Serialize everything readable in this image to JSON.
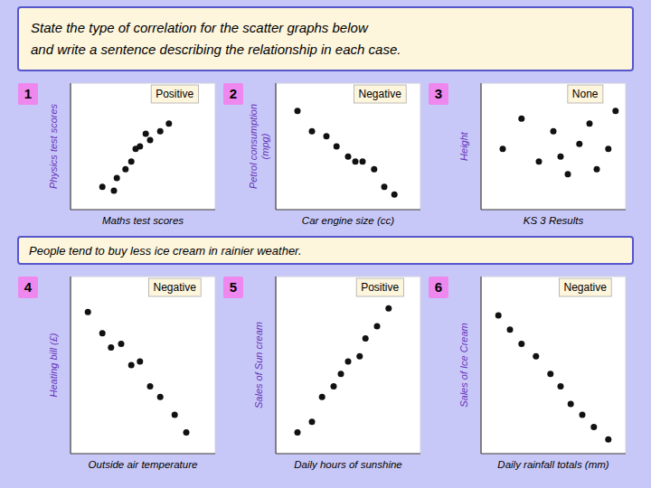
{
  "title": "State the type of correlation for the scatter graphs below\nand write a sentence describing the relationship in each case.",
  "annotations": [
    "People tend to buy less ice cream in rainier weather."
  ],
  "chart_data": [
    {
      "type": "scatter",
      "title": "1",
      "annotations": [
        "Positive"
      ],
      "y_label": "Physics test scores",
      "x_label": "Maths test scores",
      "x": [
        0.22,
        0.32,
        0.42,
        0.48,
        0.55,
        0.62,
        0.68,
        0.38,
        0.45,
        0.52,
        0.3
      ],
      "values": [
        0.18,
        0.25,
        0.38,
        0.5,
        0.55,
        0.62,
        0.68,
        0.32,
        0.48,
        0.6,
        0.15
      ],
      "color": "#111111",
      "xlim": [
        0,
        1
      ],
      "ylim": [
        0,
        1
      ],
      "tick_labels": false,
      "grid": false
    },
    {
      "type": "scatter",
      "title": "2",
      "annotations": [
        "Negative"
      ],
      "y_label": "Petrol consumption\n(mpg)",
      "x_label": "Car engine size (cc)",
      "x": [
        0.15,
        0.25,
        0.35,
        0.42,
        0.5,
        0.55,
        0.6,
        0.68,
        0.75,
        0.82
      ],
      "values": [
        0.78,
        0.62,
        0.58,
        0.5,
        0.42,
        0.38,
        0.38,
        0.32,
        0.18,
        0.12
      ],
      "color": "#111111",
      "xlim": [
        0,
        1
      ],
      "ylim": [
        0,
        1
      ],
      "tick_labels": false,
      "grid": false
    },
    {
      "type": "scatter",
      "title": "3",
      "annotations": [
        "None"
      ],
      "y_label": "Height",
      "x_label": "KS 3 Results",
      "x": [
        0.15,
        0.28,
        0.4,
        0.5,
        0.55,
        0.6,
        0.68,
        0.75,
        0.8,
        0.88,
        0.93
      ],
      "values": [
        0.48,
        0.72,
        0.38,
        0.62,
        0.42,
        0.28,
        0.52,
        0.68,
        0.32,
        0.48,
        0.78
      ],
      "color": "#111111",
      "xlim": [
        0,
        1
      ],
      "ylim": [
        0,
        1
      ],
      "tick_labels": false,
      "grid": false
    },
    {
      "type": "scatter",
      "title": "4",
      "annotations": [
        "Negative"
      ],
      "y_label": "Heating bill (£)",
      "x_label": "Outside air temperature",
      "x": [
        0.12,
        0.22,
        0.28,
        0.35,
        0.42,
        0.48,
        0.55,
        0.62,
        0.72,
        0.8
      ],
      "values": [
        0.8,
        0.68,
        0.6,
        0.62,
        0.5,
        0.52,
        0.38,
        0.32,
        0.22,
        0.12
      ],
      "color": "#111111",
      "xlim": [
        0,
        1
      ],
      "ylim": [
        0,
        1
      ],
      "tick_labels": false,
      "grid": false
    },
    {
      "type": "scatter",
      "title": "5",
      "annotations": [
        "Positive"
      ],
      "y_label": "Sales of Sun cream",
      "x_label": "Daily hours of sunshine",
      "x": [
        0.15,
        0.25,
        0.32,
        0.4,
        0.45,
        0.5,
        0.58,
        0.62,
        0.7,
        0.78
      ],
      "values": [
        0.12,
        0.18,
        0.32,
        0.38,
        0.45,
        0.52,
        0.55,
        0.65,
        0.72,
        0.82
      ],
      "color": "#111111",
      "xlim": [
        0,
        1
      ],
      "ylim": [
        0,
        1
      ],
      "tick_labels": false,
      "grid": false
    },
    {
      "type": "scatter",
      "title": "6",
      "annotations": [
        "Negative"
      ],
      "y_label": "Sales of Ice Cream",
      "x_label": "Daily rainfall totals (mm)",
      "x": [
        0.12,
        0.2,
        0.28,
        0.38,
        0.48,
        0.55,
        0.62,
        0.7,
        0.78,
        0.88
      ],
      "values": [
        0.78,
        0.7,
        0.62,
        0.55,
        0.45,
        0.38,
        0.28,
        0.22,
        0.15,
        0.08
      ],
      "color": "#111111",
      "xlim": [
        0,
        1
      ],
      "ylim": [
        0,
        1
      ],
      "tick_labels": false,
      "grid": false
    }
  ]
}
